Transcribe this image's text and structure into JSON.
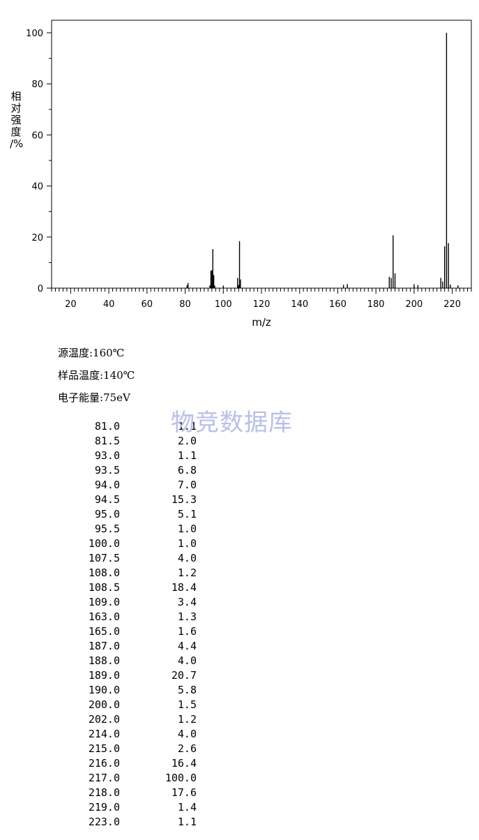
{
  "chart_data": {
    "type": "bar",
    "xlabel": "m/z",
    "ylabel_chars": [
      "相",
      "对",
      "强",
      "度",
      "/%"
    ],
    "xlim": [
      10,
      230
    ],
    "ylim": [
      0,
      105
    ],
    "x_ticks": [
      20,
      40,
      60,
      80,
      100,
      120,
      140,
      160,
      180,
      200,
      220
    ],
    "y_ticks": [
      0,
      20,
      40,
      60,
      80,
      100
    ],
    "grid": false,
    "x": [
      81.0,
      81.5,
      93.0,
      93.5,
      94.0,
      94.5,
      95.0,
      95.5,
      100.0,
      107.5,
      108.0,
      108.5,
      109.0,
      163.0,
      165.0,
      187.0,
      188.0,
      189.0,
      190.0,
      200.0,
      202.0,
      214.0,
      215.0,
      216.0,
      217.0,
      218.0,
      219.0,
      223.0
    ],
    "values": [
      1.1,
      2.0,
      1.1,
      6.8,
      7.0,
      15.3,
      5.1,
      1.0,
      1.0,
      4.0,
      1.2,
      18.4,
      3.4,
      1.3,
      1.6,
      4.4,
      4.0,
      20.7,
      5.8,
      1.5,
      1.2,
      4.0,
      2.6,
      16.4,
      100.0,
      17.6,
      1.4,
      1.1
    ]
  },
  "conditions": {
    "source_temp": "源温度:160℃",
    "sample_temp": "样品温度:140℃",
    "electron_energy": "电子能量:75eV"
  },
  "watermark": "物竞数据库",
  "peak_table": [
    {
      "mz": "81.0",
      "abundance": "1.1"
    },
    {
      "mz": "81.5",
      "abundance": "2.0"
    },
    {
      "mz": "93.0",
      "abundance": "1.1"
    },
    {
      "mz": "93.5",
      "abundance": "6.8"
    },
    {
      "mz": "94.0",
      "abundance": "7.0"
    },
    {
      "mz": "94.5",
      "abundance": "15.3"
    },
    {
      "mz": "95.0",
      "abundance": "5.1"
    },
    {
      "mz": "95.5",
      "abundance": "1.0"
    },
    {
      "mz": "100.0",
      "abundance": "1.0"
    },
    {
      "mz": "107.5",
      "abundance": "4.0"
    },
    {
      "mz": "108.0",
      "abundance": "1.2"
    },
    {
      "mz": "108.5",
      "abundance": "18.4"
    },
    {
      "mz": "109.0",
      "abundance": "3.4"
    },
    {
      "mz": "163.0",
      "abundance": "1.3"
    },
    {
      "mz": "165.0",
      "abundance": "1.6"
    },
    {
      "mz": "187.0",
      "abundance": "4.4"
    },
    {
      "mz": "188.0",
      "abundance": "4.0"
    },
    {
      "mz": "189.0",
      "abundance": "20.7"
    },
    {
      "mz": "190.0",
      "abundance": "5.8"
    },
    {
      "mz": "200.0",
      "abundance": "1.5"
    },
    {
      "mz": "202.0",
      "abundance": "1.2"
    },
    {
      "mz": "214.0",
      "abundance": "4.0"
    },
    {
      "mz": "215.0",
      "abundance": "2.6"
    },
    {
      "mz": "216.0",
      "abundance": "16.4"
    },
    {
      "mz": "217.0",
      "abundance": "100.0"
    },
    {
      "mz": "218.0",
      "abundance": "17.6"
    },
    {
      "mz": "219.0",
      "abundance": "1.4"
    },
    {
      "mz": "223.0",
      "abundance": "1.1"
    }
  ]
}
